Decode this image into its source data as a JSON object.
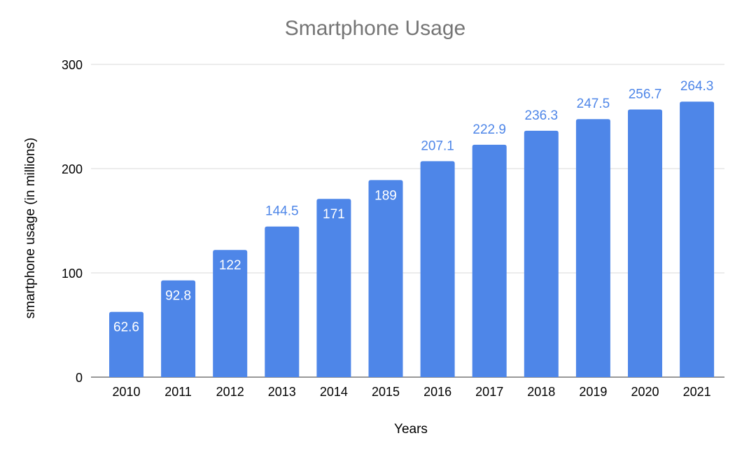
{
  "chart_data": {
    "type": "bar",
    "title": "Smartphone Usage",
    "xlabel": "Years",
    "ylabel": "smartphone usage (in millions)",
    "categories": [
      "2010",
      "2011",
      "2012",
      "2013",
      "2014",
      "2015",
      "2016",
      "2017",
      "2018",
      "2019",
      "2020",
      "2021"
    ],
    "values": [
      62.6,
      92.8,
      122,
      144.5,
      171,
      189,
      207.1,
      222.9,
      236.3,
      247.5,
      256.7,
      264.3
    ],
    "data_labels": [
      "62.6",
      "92.8",
      "122",
      "144.5",
      "171",
      "189",
      "207.1",
      "222.9",
      "236.3",
      "247.5",
      "256.7",
      "264.3"
    ],
    "ylim": [
      0,
      300
    ],
    "yticks": [
      "0",
      "100",
      "200",
      "300"
    ],
    "grid": true,
    "legend": "none",
    "colors": {
      "bar": "#4E86E8",
      "label_outside": "#4E86E8",
      "label_inside": "#FFFFFF",
      "title": "#757575",
      "grid": "#D9D9D9"
    }
  }
}
